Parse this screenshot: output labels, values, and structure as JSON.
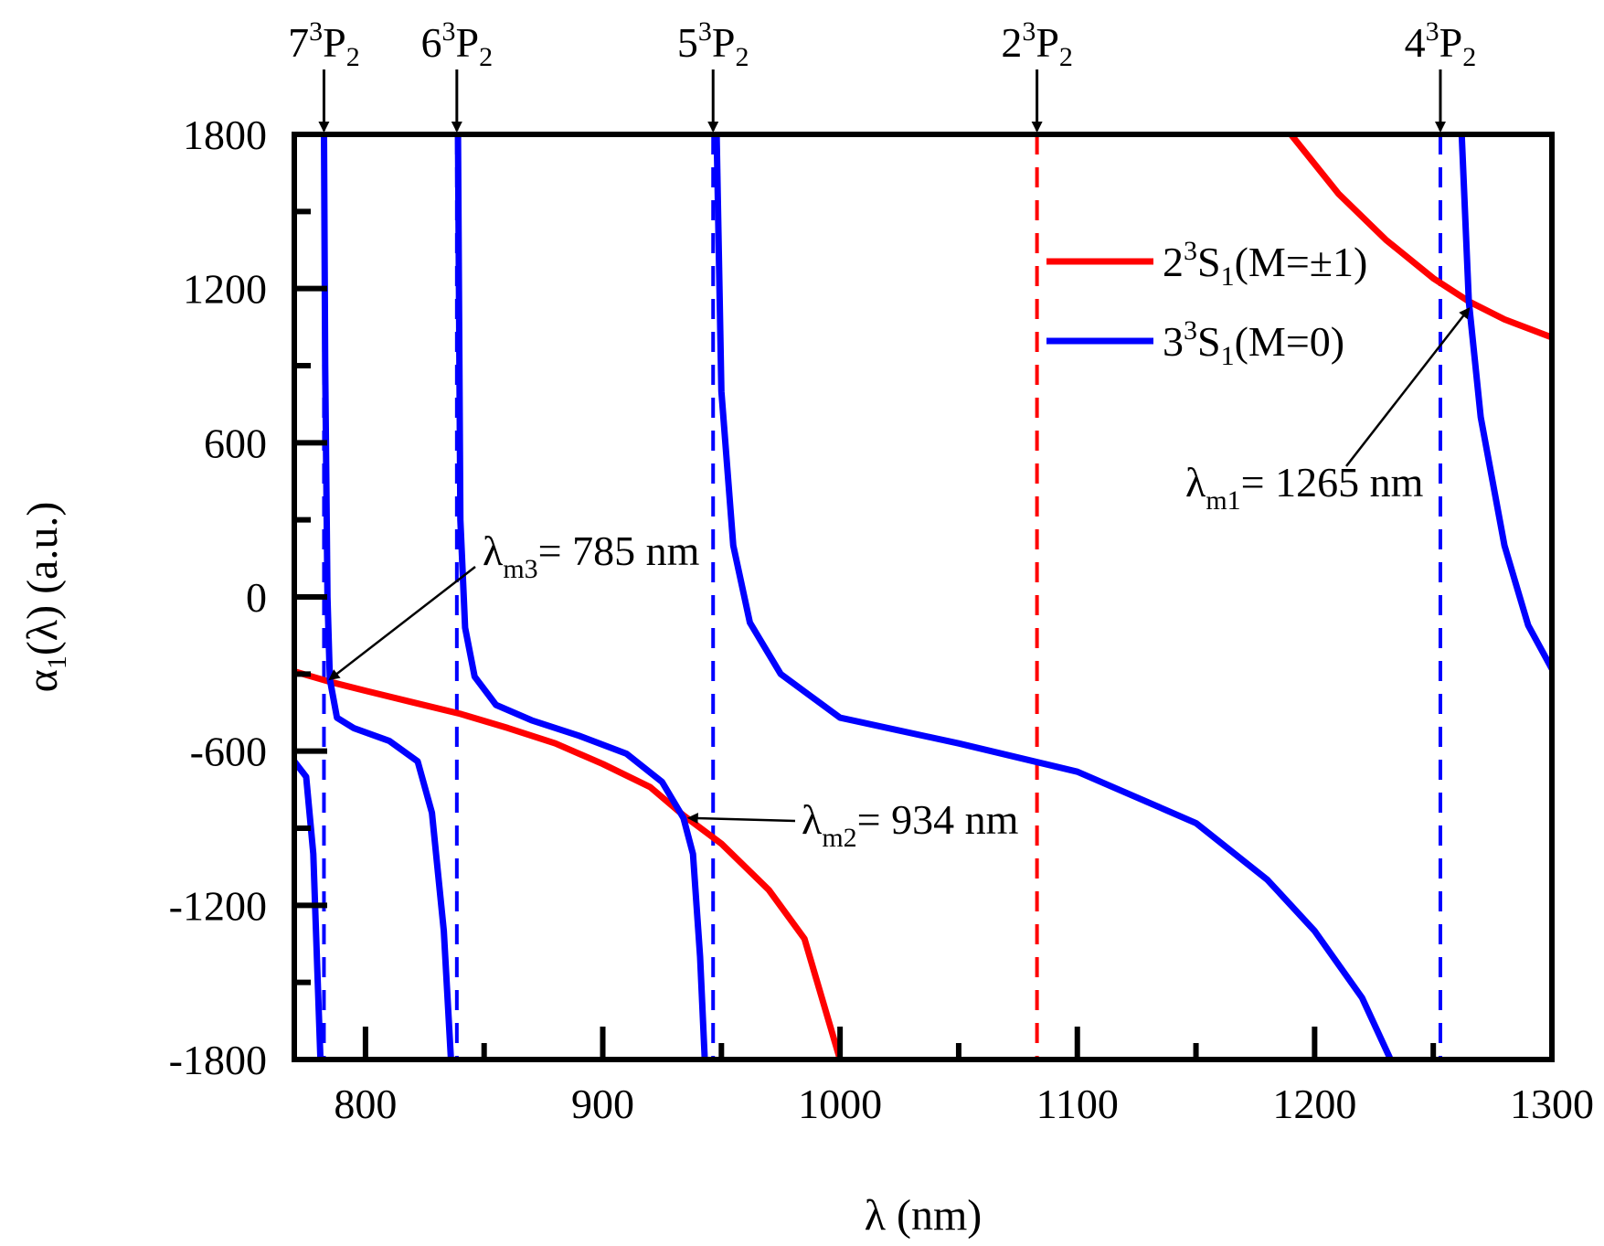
{
  "chart_data": {
    "type": "line",
    "title": "",
    "xlabel": "λ (nm)",
    "ylabel": "α1(λ) (a.u.)",
    "xlim": [
      770,
      1300
    ],
    "ylim": [
      -1800,
      1800
    ],
    "x_ticks": [
      800,
      900,
      1000,
      1100,
      1200,
      1300
    ],
    "y_ticks": [
      -1800,
      -1200,
      -600,
      0,
      600,
      1200,
      1800
    ],
    "grid": false,
    "legend_position": "top-right",
    "series": [
      {
        "name": "2³S₁(M=±1)",
        "label_main": "2",
        "label_sup": "3",
        "label_mid": "S",
        "label_sub": "1",
        "label_tail": "(M=±1)",
        "color": "#ff0000",
        "points": [
          [
            770,
            -290
          ],
          [
            785,
            -330
          ],
          [
            800,
            -365
          ],
          [
            820,
            -410
          ],
          [
            840,
            -455
          ],
          [
            860,
            -510
          ],
          [
            880,
            -570
          ],
          [
            900,
            -650
          ],
          [
            920,
            -740
          ],
          [
            934,
            -850
          ],
          [
            950,
            -960
          ],
          [
            970,
            -1140
          ],
          [
            985,
            -1330
          ],
          [
            1000,
            -1800
          ],
          [
            1190,
            1800
          ],
          [
            1210,
            1570
          ],
          [
            1230,
            1390
          ],
          [
            1250,
            1240
          ],
          [
            1265,
            1150
          ],
          [
            1280,
            1080
          ],
          [
            1300,
            1010
          ]
        ]
      },
      {
        "name": "3³S₁(M=0)",
        "label_main": "3",
        "label_sup": "3",
        "label_mid": "S",
        "label_sub": "1",
        "label_tail": "(M=0)",
        "color": "#0000ff",
        "points": [
          [
            770,
            -640
          ],
          [
            775,
            -700
          ],
          [
            778,
            -1000
          ],
          [
            781,
            -1800
          ],
          [
            782.5,
            1800
          ],
          [
            783,
            900
          ],
          [
            784,
            0
          ],
          [
            785,
            -320
          ],
          [
            788,
            -470
          ],
          [
            795,
            -510
          ],
          [
            810,
            -560
          ],
          [
            822,
            -640
          ],
          [
            828,
            -840
          ],
          [
            833,
            -1300
          ],
          [
            836,
            -1800
          ],
          [
            839,
            1800
          ],
          [
            840,
            300
          ],
          [
            842,
            -120
          ],
          [
            846,
            -310
          ],
          [
            855,
            -420
          ],
          [
            870,
            -480
          ],
          [
            890,
            -540
          ],
          [
            910,
            -610
          ],
          [
            925,
            -720
          ],
          [
            934,
            -860
          ],
          [
            938,
            -1000
          ],
          [
            941,
            -1400
          ],
          [
            943,
            -1800
          ],
          [
            948,
            1800
          ],
          [
            950,
            800
          ],
          [
            955,
            200
          ],
          [
            962,
            -100
          ],
          [
            975,
            -300
          ],
          [
            1000,
            -470
          ],
          [
            1050,
            -570
          ],
          [
            1100,
            -680
          ],
          [
            1150,
            -880
          ],
          [
            1180,
            -1100
          ],
          [
            1200,
            -1300
          ],
          [
            1220,
            -1560
          ],
          [
            1232,
            -1800
          ],
          [
            1262,
            1800
          ],
          [
            1265,
            1150
          ],
          [
            1270,
            700
          ],
          [
            1280,
            200
          ],
          [
            1290,
            -110
          ],
          [
            1300,
            -280
          ]
        ]
      }
    ],
    "reference_lines": [
      {
        "x": 782.5,
        "color": "#0000ff",
        "label": "7³P₂",
        "top_main": "7",
        "top_sup": "3",
        "top_mid": "P",
        "top_sub": "2"
      },
      {
        "x": 838.5,
        "color": "#0000ff",
        "label": "6³P₂",
        "top_main": "6",
        "top_sup": "3",
        "top_mid": "P",
        "top_sub": "2"
      },
      {
        "x": 946.5,
        "color": "#0000ff",
        "label": "5³P₂",
        "top_main": "5",
        "top_sup": "3",
        "top_mid": "P",
        "top_sub": "2"
      },
      {
        "x": 1083,
        "color": "#ff0000",
        "label": "2³P₂",
        "top_main": "2",
        "top_sup": "3",
        "top_mid": "P",
        "top_sub": "2"
      },
      {
        "x": 1253,
        "color": "#0000ff",
        "label": "4³P₂",
        "top_main": "4",
        "top_sup": "3",
        "top_mid": "P",
        "top_sub": "2"
      }
    ],
    "annotations": [
      {
        "label": "λm3= 785 nm",
        "main": "λ",
        "sub": "m3",
        "tail": "= 785 nm",
        "target": [
          785,
          -320
        ]
      },
      {
        "label": "λm2= 934 nm",
        "main": "λ",
        "sub": "m2",
        "tail": "= 934 nm",
        "target": [
          934,
          -860
        ]
      },
      {
        "label": "λm1= 1265 nm",
        "main": "λ",
        "sub": "m1",
        "tail": "= 1265 nm",
        "target": [
          1265,
          1150
        ]
      }
    ]
  }
}
